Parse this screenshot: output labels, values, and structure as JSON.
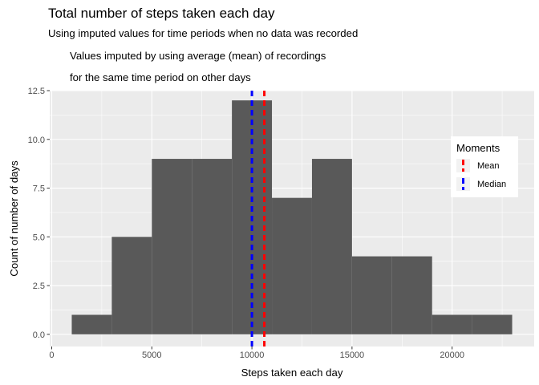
{
  "chart_data": {
    "type": "bar",
    "title": "Total number of steps taken each day",
    "subtitle_lines": [
      "Using imputed values for time periods when no data was recorded",
      "Values imputed by using average (mean) of recordings",
      "for the same time period on other days"
    ],
    "xlabel": "Steps taken each day",
    "ylabel": "Count of number of days",
    "xlim": [
      -100,
      24100
    ],
    "ylim": [
      -0.625,
      12.5
    ],
    "x_ticks": [
      0,
      5000,
      10000,
      15000,
      20000
    ],
    "x_tick_labels": [
      "0",
      "5000",
      "10000",
      "15000",
      "20000"
    ],
    "y_ticks": [
      0,
      2.5,
      5,
      7.5,
      10,
      12.5
    ],
    "y_tick_labels": [
      "0.0",
      "2.5",
      "5.0",
      "7.5",
      "10.0",
      "12.5"
    ],
    "bins": [
      {
        "x0": 1000,
        "x1": 3000,
        "count": 1
      },
      {
        "x0": 3000,
        "x1": 5000,
        "count": 5
      },
      {
        "x0": 5000,
        "x1": 7000,
        "count": 9
      },
      {
        "x0": 7000,
        "x1": 9000,
        "count": 9
      },
      {
        "x0": 9000,
        "x1": 11000,
        "count": 12
      },
      {
        "x0": 11000,
        "x1": 13000,
        "count": 7
      },
      {
        "x0": 13000,
        "x1": 15000,
        "count": 9
      },
      {
        "x0": 15000,
        "x1": 17000,
        "count": 4
      },
      {
        "x0": 17000,
        "x1": 19000,
        "count": 4
      },
      {
        "x0": 19000,
        "x1": 21000,
        "count": 1
      },
      {
        "x0": 21000,
        "x1": 23000,
        "count": 1
      }
    ],
    "vlines": [
      {
        "name": "Mean",
        "value": 10620,
        "color": "#ff0000"
      },
      {
        "name": "Median",
        "value": 10000,
        "color": "#0000ff"
      }
    ],
    "legend": {
      "title": "Moments",
      "placement": "right",
      "entries": [
        "Mean",
        "Median"
      ]
    },
    "colors": {
      "bar_fill": "#595959",
      "panel_bg": "#ebebeb",
      "grid": "#ffffff"
    },
    "grid": true
  }
}
